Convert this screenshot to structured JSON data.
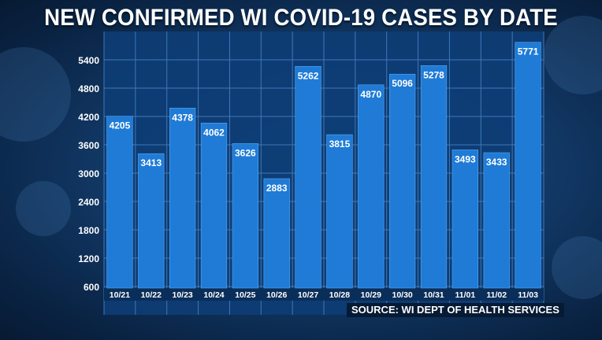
{
  "title": "NEW CONFIRMED WI COVID-19 CASES BY DATE",
  "source": "SOURCE: WI DEPT OF HEALTH SERVICES",
  "colors": {
    "bar": "#1f7bd6",
    "bar_edge": "#5aa8f0",
    "plot_bg": "#0d3d75",
    "grid": "#3f78b8",
    "text": "#ffffff"
  },
  "chart_data": {
    "type": "bar",
    "title": "NEW CONFIRMED WI COVID-19 CASES BY DATE",
    "xlabel": "",
    "ylabel": "",
    "categories": [
      "10/21",
      "10/22",
      "10/23",
      "10/24",
      "10/25",
      "10/26",
      "10/27",
      "10/28",
      "10/29",
      "10/30",
      "10/31",
      "11/01",
      "11/02",
      "11/03"
    ],
    "values": [
      4205,
      3413,
      4378,
      4062,
      3626,
      2883,
      5262,
      3815,
      4870,
      5096,
      5278,
      3493,
      3433,
      5771
    ],
    "yticks": [
      600,
      1200,
      1800,
      2400,
      3000,
      3600,
      4200,
      4800,
      5400
    ],
    "ylim": [
      0,
      6000
    ],
    "grid": true,
    "data_labels": true
  }
}
